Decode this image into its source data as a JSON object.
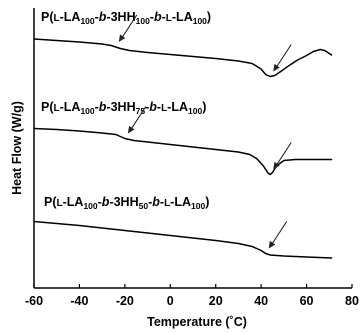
{
  "chart_data": {
    "type": "line",
    "xlabel": "Temperature (˚C)",
    "ylabel": "Heat Flow (W/g)",
    "xlim": [
      -60,
      80
    ],
    "xticks": [
      "-60",
      "-40",
      "-20",
      "0",
      "20",
      "40",
      "60",
      "80"
    ],
    "xtick_values": [
      -60,
      -40,
      -20,
      0,
      20,
      40,
      60,
      80
    ],
    "y_units": "arbitrary (curves offset vertically)",
    "series": [
      {
        "name": "P(L-LA100-b-3HH100-b-L-LA100)",
        "label_parts": [
          {
            "t": "P(",
            "s": "normal"
          },
          {
            "t": "L",
            "s": "smallcaps"
          },
          {
            "t": "-LA",
            "s": "normal"
          },
          {
            "t": "100",
            "s": "sub"
          },
          {
            "t": "-",
            "s": "normal"
          },
          {
            "t": "b",
            "s": "italic"
          },
          {
            "t": "-3HH",
            "s": "normal"
          },
          {
            "t": "100",
            "s": "sub"
          },
          {
            "t": "-",
            "s": "normal"
          },
          {
            "t": "b",
            "s": "italic"
          },
          {
            "t": "-",
            "s": "normal"
          },
          {
            "t": "L",
            "s": "smallcaps"
          },
          {
            "t": "-LA",
            "s": "normal"
          },
          {
            "t": "100",
            "s": "sub"
          },
          {
            "t": ")",
            "s": "normal"
          }
        ],
        "arrow_targets_x": [
          -24,
          44
        ],
        "points": [
          [
            -60,
            0.4
          ],
          [
            -50,
            0.25
          ],
          [
            -40,
            0.1
          ],
          [
            -30,
            -0.1
          ],
          [
            -26,
            -0.25
          ],
          [
            -22,
            -0.55
          ],
          [
            -18,
            -0.75
          ],
          [
            -10,
            -0.95
          ],
          [
            0,
            -1.15
          ],
          [
            10,
            -1.35
          ],
          [
            20,
            -1.55
          ],
          [
            30,
            -1.8
          ],
          [
            36,
            -2.05
          ],
          [
            40,
            -2.6
          ],
          [
            42,
            -3.15
          ],
          [
            44,
            -3.35
          ],
          [
            46,
            -3.25
          ],
          [
            48,
            -2.95
          ],
          [
            52,
            -2.3
          ],
          [
            56,
            -1.7
          ],
          [
            60,
            -1.25
          ],
          [
            63,
            -0.85
          ],
          [
            66,
            -0.65
          ],
          [
            68,
            -0.75
          ],
          [
            71,
            -1.2
          ]
        ]
      },
      {
        "name": "P(L-LA100-b-3HH75-b-L-LA100)",
        "label_parts": [
          {
            "t": "P(",
            "s": "normal"
          },
          {
            "t": "L",
            "s": "smallcaps"
          },
          {
            "t": "-LA",
            "s": "normal"
          },
          {
            "t": "100",
            "s": "sub"
          },
          {
            "t": "-",
            "s": "normal"
          },
          {
            "t": "b",
            "s": "italic"
          },
          {
            "t": "-3HH",
            "s": "normal"
          },
          {
            "t": "75",
            "s": "sub"
          },
          {
            "t": "-",
            "s": "normal"
          },
          {
            "t": "b",
            "s": "italic"
          },
          {
            "t": "-",
            "s": "normal"
          },
          {
            "t": "L",
            "s": "smallcaps"
          },
          {
            "t": "-LA",
            "s": "normal"
          },
          {
            "t": "100",
            "s": "sub"
          },
          {
            "t": ")",
            "s": "normal"
          }
        ],
        "arrow_targets_x": [
          -20,
          44
        ],
        "points": [
          [
            -60,
            0.15
          ],
          [
            -50,
            0.05
          ],
          [
            -40,
            -0.1
          ],
          [
            -30,
            -0.3
          ],
          [
            -24,
            -0.45
          ],
          [
            -20,
            -0.85
          ],
          [
            -16,
            -1.05
          ],
          [
            -10,
            -1.2
          ],
          [
            0,
            -1.45
          ],
          [
            10,
            -1.7
          ],
          [
            20,
            -1.95
          ],
          [
            30,
            -2.2
          ],
          [
            35,
            -2.45
          ],
          [
            38,
            -2.85
          ],
          [
            41,
            -3.6
          ],
          [
            43,
            -4.3
          ],
          [
            44,
            -4.45
          ],
          [
            45,
            -4.25
          ],
          [
            47,
            -3.55
          ],
          [
            50,
            -3.05
          ],
          [
            55,
            -2.95
          ],
          [
            62,
            -2.95
          ],
          [
            71,
            -2.95
          ]
        ]
      },
      {
        "name": "P(L-LA100-b-3HH50-b-L-LA100)",
        "label_parts": [
          {
            "t": "P(",
            "s": "normal"
          },
          {
            "t": "L",
            "s": "smallcaps"
          },
          {
            "t": "-LA",
            "s": "normal"
          },
          {
            "t": "100",
            "s": "sub"
          },
          {
            "t": "-",
            "s": "normal"
          },
          {
            "t": "b",
            "s": "italic"
          },
          {
            "t": "-3HH",
            "s": "normal"
          },
          {
            "t": "50",
            "s": "sub"
          },
          {
            "t": "-",
            "s": "normal"
          },
          {
            "t": "b",
            "s": "italic"
          },
          {
            "t": "-",
            "s": "normal"
          },
          {
            "t": "L",
            "s": "smallcaps"
          },
          {
            "t": "-LA",
            "s": "normal"
          },
          {
            "t": "100",
            "s": "sub"
          },
          {
            "t": ")",
            "s": "normal"
          }
        ],
        "arrow_targets_x": [
          42
        ],
        "points": [
          [
            -60,
            0.35
          ],
          [
            -50,
            0.15
          ],
          [
            -40,
            -0.05
          ],
          [
            -30,
            -0.3
          ],
          [
            -20,
            -0.55
          ],
          [
            -10,
            -0.8
          ],
          [
            0,
            -1.05
          ],
          [
            10,
            -1.3
          ],
          [
            20,
            -1.55
          ],
          [
            30,
            -1.85
          ],
          [
            36,
            -2.15
          ],
          [
            40,
            -2.55
          ],
          [
            42,
            -2.85
          ],
          [
            44,
            -3.0
          ],
          [
            50,
            -3.1
          ],
          [
            60,
            -3.2
          ],
          [
            71,
            -3.3
          ]
        ]
      }
    ]
  }
}
